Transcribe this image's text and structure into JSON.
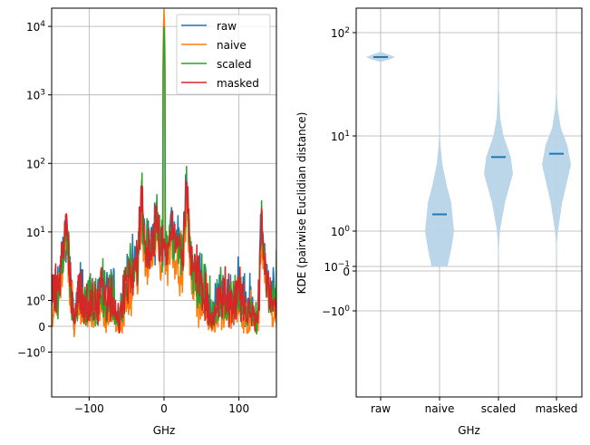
{
  "chart_data": [
    {
      "type": "line",
      "xlabel": "GHz",
      "ylabel": "",
      "xlim": [
        -150,
        150
      ],
      "ylim": [
        -4.5,
        18000
      ],
      "yscale": "symlog",
      "grid": true,
      "legend_position": "top-right",
      "xticks": [
        {
          "value": -100,
          "label": "−100"
        },
        {
          "value": 0,
          "label": "0"
        },
        {
          "value": 100,
          "label": "100"
        }
      ],
      "yticks": [
        {
          "value": 10000,
          "base": "10",
          "exp": "4"
        },
        {
          "value": 1000,
          "base": "10",
          "exp": "3"
        },
        {
          "value": 100,
          "base": "10",
          "exp": "2"
        },
        {
          "value": 10,
          "base": "10",
          "exp": "1"
        },
        {
          "value": 1,
          "base": "10",
          "exp": "0"
        },
        {
          "value": 0,
          "base": "0",
          "exp": ""
        },
        {
          "value": -1,
          "base": "−10",
          "exp": "0"
        }
      ],
      "x": [
        -150,
        -145,
        -140,
        -135,
        -130,
        -125,
        -120,
        -115,
        -110,
        -105,
        -100,
        -95,
        -90,
        -85,
        -80,
        -75,
        -70,
        -65,
        -60,
        -55,
        -50,
        -45,
        -40,
        -35,
        -30,
        -25,
        -20,
        -15,
        -10,
        -5,
        0,
        5,
        10,
        15,
        20,
        25,
        30,
        35,
        40,
        45,
        50,
        55,
        60,
        65,
        70,
        75,
        80,
        85,
        90,
        95,
        100,
        105,
        110,
        115,
        120,
        125,
        130,
        135,
        140,
        145,
        150
      ],
      "envelope": [
        1.5,
        1.2,
        2,
        5,
        12,
        2,
        0.5,
        1.2,
        1.5,
        1,
        1.5,
        1,
        1.2,
        2,
        1.5,
        1,
        1.5,
        0.8,
        0.5,
        1,
        2,
        3,
        3,
        4,
        35,
        5,
        6,
        7,
        14,
        6,
        15000,
        6,
        12,
        8,
        6,
        4,
        45,
        5,
        3,
        2.5,
        2,
        1.5,
        0.7,
        0.5,
        1,
        1.5,
        1.2,
        1.5,
        1,
        1.2,
        1.5,
        1,
        0.8,
        1,
        0.6,
        0.5,
        15,
        3,
        1.5,
        1,
        1.5
      ],
      "series": [
        {
          "name": "raw",
          "color": "#1f77b4",
          "scale": 1.1,
          "center_peak": 8
        },
        {
          "name": "naive",
          "color": "#ff7f0e",
          "scale": 0.6,
          "center_peak": 18000
        },
        {
          "name": "scaled",
          "color": "#2ca02c",
          "scale": 1.0,
          "center_peak": 10000
        },
        {
          "name": "masked",
          "color": "#d62728",
          "scale": 1.0,
          "center_peak": 8
        }
      ]
    },
    {
      "type": "violin",
      "xlabel": "GHz",
      "ylabel": "KDE (pairwise Euclidian distance)",
      "ylim": [
        -4.5,
        172
      ],
      "yscale": "symlog",
      "grid": true,
      "fill_color": "#b8d4e8",
      "median_color": "#1f77b4",
      "yticks": [
        {
          "value": 100,
          "base": "10",
          "exp": "2"
        },
        {
          "value": 10,
          "base": "10",
          "exp": "1"
        },
        {
          "value": 1,
          "base": "10",
          "exp": "0"
        },
        {
          "value": 0.1,
          "base": "10",
          "exp": "−1"
        },
        {
          "value": 0,
          "base": "0",
          "exp": ""
        },
        {
          "value": -1,
          "base": "−10",
          "exp": "0"
        }
      ],
      "categories": [
        "raw",
        "naive",
        "scaled",
        "masked"
      ],
      "medians": [
        58,
        1.5,
        6,
        6.5
      ],
      "kde": [
        [
          [
            52,
            0
          ],
          [
            55,
            0.6
          ],
          [
            58,
            1
          ],
          [
            61,
            0.6
          ],
          [
            65,
            0
          ]
        ],
        [
          [
            0.1,
            0.55
          ],
          [
            0.3,
            0.8
          ],
          [
            1,
            1
          ],
          [
            2,
            0.8
          ],
          [
            3,
            0.5
          ],
          [
            5,
            0.2
          ],
          [
            8,
            0.06
          ],
          [
            13,
            0
          ]
        ],
        [
          [
            0.12,
            0
          ],
          [
            0.5,
            0.05
          ],
          [
            1,
            0.1
          ],
          [
            2,
            0.45
          ],
          [
            4,
            1
          ],
          [
            6,
            0.85
          ],
          [
            10,
            0.35
          ],
          [
            15,
            0.12
          ],
          [
            25,
            0.05
          ],
          [
            40,
            0
          ]
        ],
        [
          [
            0.12,
            0
          ],
          [
            0.5,
            0.04
          ],
          [
            1,
            0.1
          ],
          [
            2,
            0.4
          ],
          [
            5,
            1
          ],
          [
            8,
            0.75
          ],
          [
            12,
            0.3
          ],
          [
            18,
            0.1
          ],
          [
            30,
            0
          ]
        ]
      ]
    }
  ]
}
